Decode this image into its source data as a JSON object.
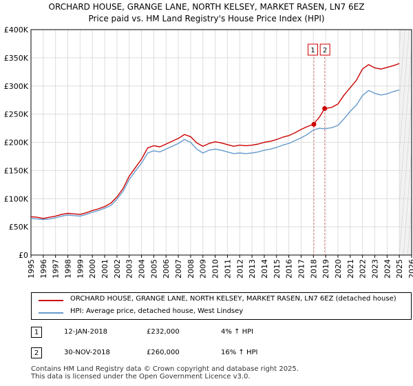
{
  "chart_data": {
    "type": "line",
    "title": [
      "ORCHARD HOUSE, GRANGE LANE, NORTH KELSEY, MARKET RASEN, LN7 6EZ",
      "Price paid vs. HM Land Registry's House Price Index (HPI)"
    ],
    "xlim": [
      1995,
      2026
    ],
    "ylim": [
      0,
      400000
    ],
    "yticks": [
      0,
      50000,
      100000,
      150000,
      200000,
      250000,
      300000,
      350000,
      400000
    ],
    "ytick_labels": [
      "£0",
      "£50K",
      "£100K",
      "£150K",
      "£200K",
      "£250K",
      "£300K",
      "£350K",
      "£400K"
    ],
    "xticks": [
      1995,
      1996,
      1997,
      1998,
      1999,
      2000,
      2001,
      2002,
      2003,
      2004,
      2005,
      2006,
      2007,
      2008,
      2009,
      2010,
      2011,
      2012,
      2013,
      2014,
      2015,
      2016,
      2017,
      2018,
      2019,
      2020,
      2021,
      2022,
      2023,
      2024,
      2025,
      2026
    ],
    "grid": true,
    "future_shade_from": 2025.0,
    "series": [
      {
        "name": "ORCHARD HOUSE, GRANGE LANE, NORTH KELSEY, MARKET RASEN, LN7 6EZ (detached house)",
        "color": "#cc0000",
        "points": [
          [
            1995.0,
            68000
          ],
          [
            1995.5,
            67000
          ],
          [
            1996.0,
            65000
          ],
          [
            1996.5,
            67000
          ],
          [
            1997.0,
            69000
          ],
          [
            1997.5,
            72000
          ],
          [
            1998.0,
            74000
          ],
          [
            1998.5,
            73000
          ],
          [
            1999.0,
            72000
          ],
          [
            1999.5,
            75000
          ],
          [
            2000.0,
            79000
          ],
          [
            2000.5,
            82000
          ],
          [
            2001.0,
            86000
          ],
          [
            2001.5,
            92000
          ],
          [
            2002.0,
            103000
          ],
          [
            2002.5,
            118000
          ],
          [
            2003.0,
            140000
          ],
          [
            2003.5,
            155000
          ],
          [
            2004.0,
            170000
          ],
          [
            2004.5,
            190000
          ],
          [
            2005.0,
            194000
          ],
          [
            2005.5,
            192000
          ],
          [
            2006.0,
            197000
          ],
          [
            2006.5,
            202000
          ],
          [
            2007.0,
            207000
          ],
          [
            2007.5,
            214000
          ],
          [
            2008.0,
            210000
          ],
          [
            2008.5,
            199000
          ],
          [
            2009.0,
            193000
          ],
          [
            2009.5,
            198000
          ],
          [
            2010.0,
            201000
          ],
          [
            2010.5,
            199000
          ],
          [
            2011.0,
            196000
          ],
          [
            2011.5,
            193000
          ],
          [
            2012.0,
            195000
          ],
          [
            2012.5,
            194000
          ],
          [
            2013.0,
            195000
          ],
          [
            2013.5,
            197000
          ],
          [
            2014.0,
            200000
          ],
          [
            2014.5,
            202000
          ],
          [
            2015.0,
            205000
          ],
          [
            2015.5,
            209000
          ],
          [
            2016.0,
            212000
          ],
          [
            2016.5,
            217000
          ],
          [
            2017.0,
            223000
          ],
          [
            2017.5,
            228000
          ],
          [
            2018.0,
            232000
          ],
          [
            2018.5,
            245000
          ],
          [
            2018.92,
            260000
          ],
          [
            2019.5,
            262000
          ],
          [
            2020.0,
            268000
          ],
          [
            2020.5,
            284000
          ],
          [
            2021.0,
            297000
          ],
          [
            2021.5,
            310000
          ],
          [
            2022.0,
            330000
          ],
          [
            2022.5,
            338000
          ],
          [
            2023.0,
            332000
          ],
          [
            2023.5,
            330000
          ],
          [
            2024.0,
            333000
          ],
          [
            2024.5,
            336000
          ],
          [
            2025.0,
            340000
          ]
        ]
      },
      {
        "name": "HPI: Average price, detached house, West Lindsey",
        "color": "#6699cc",
        "points": [
          [
            1995.0,
            65000
          ],
          [
            1995.5,
            64000
          ],
          [
            1996.0,
            63000
          ],
          [
            1996.5,
            64000
          ],
          [
            1997.0,
            66000
          ],
          [
            1997.5,
            69000
          ],
          [
            1998.0,
            71000
          ],
          [
            1998.5,
            70000
          ],
          [
            1999.0,
            69000
          ],
          [
            1999.5,
            72000
          ],
          [
            2000.0,
            76000
          ],
          [
            2000.5,
            79000
          ],
          [
            2001.0,
            83000
          ],
          [
            2001.5,
            88000
          ],
          [
            2002.0,
            99000
          ],
          [
            2002.5,
            113000
          ],
          [
            2003.0,
            134000
          ],
          [
            2003.5,
            149000
          ],
          [
            2004.0,
            163000
          ],
          [
            2004.5,
            181000
          ],
          [
            2005.0,
            185000
          ],
          [
            2005.5,
            183000
          ],
          [
            2006.0,
            188000
          ],
          [
            2006.5,
            193000
          ],
          [
            2007.0,
            198000
          ],
          [
            2007.5,
            205000
          ],
          [
            2008.0,
            200000
          ],
          [
            2008.5,
            188000
          ],
          [
            2009.0,
            181000
          ],
          [
            2009.5,
            186000
          ],
          [
            2010.0,
            188000
          ],
          [
            2010.5,
            186000
          ],
          [
            2011.0,
            183000
          ],
          [
            2011.5,
            180000
          ],
          [
            2012.0,
            181000
          ],
          [
            2012.5,
            180000
          ],
          [
            2013.0,
            181000
          ],
          [
            2013.5,
            183000
          ],
          [
            2014.0,
            186000
          ],
          [
            2014.5,
            188000
          ],
          [
            2015.0,
            191000
          ],
          [
            2015.5,
            195000
          ],
          [
            2016.0,
            198000
          ],
          [
            2016.5,
            203000
          ],
          [
            2017.0,
            208000
          ],
          [
            2017.5,
            214000
          ],
          [
            2018.0,
            222000
          ],
          [
            2018.5,
            225000
          ],
          [
            2018.92,
            224000
          ],
          [
            2019.5,
            226000
          ],
          [
            2020.0,
            230000
          ],
          [
            2020.5,
            242000
          ],
          [
            2021.0,
            255000
          ],
          [
            2021.5,
            266000
          ],
          [
            2022.0,
            283000
          ],
          [
            2022.5,
            292000
          ],
          [
            2023.0,
            287000
          ],
          [
            2023.5,
            284000
          ],
          [
            2024.0,
            286000
          ],
          [
            2024.5,
            290000
          ],
          [
            2025.0,
            293000
          ]
        ]
      }
    ],
    "annotations": [
      {
        "label": "1",
        "x": 2018.04,
        "price": 232000,
        "date": "12-JAN-2018",
        "price_text": "£232,000",
        "hpi_text": "4% ↑ HPI"
      },
      {
        "label": "2",
        "x": 2018.92,
        "price": 260000,
        "date": "30-NOV-2018",
        "price_text": "£260,000",
        "hpi_text": "16% ↑ HPI"
      }
    ],
    "colors": {
      "red": "#cc0000",
      "blue": "#6699cc",
      "grid": "#dddddd",
      "shade": "#f2f2f2",
      "vline": "#e08080"
    }
  },
  "footer": [
    "Contains HM Land Registry data © Crown copyright and database right 2025.",
    "This data is licensed under the Open Government Licence v3.0."
  ]
}
